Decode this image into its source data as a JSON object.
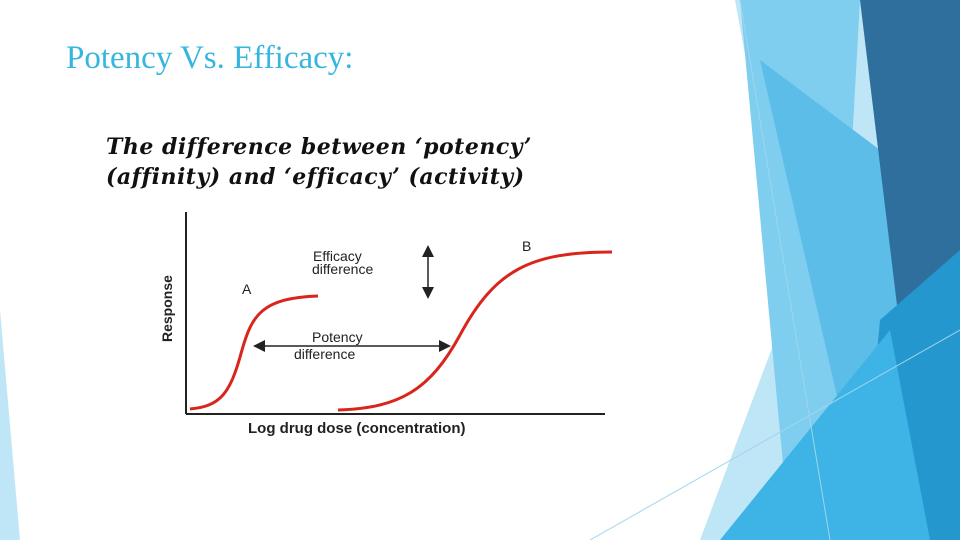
{
  "slide": {
    "title": "Potency Vs. Efficacy:"
  },
  "figure": {
    "heading_line_1": "The difference between ‘potency’",
    "heading_line_2": "(affinity) and ‘efficacy’ (activity)",
    "y_axis_label": "Response",
    "x_axis_label": "Log drug dose (concentration)",
    "curve_a_label": "A",
    "curve_b_label": "B",
    "efficacy_label_line_1": "Efficacy",
    "efficacy_label_line_2": "difference",
    "potency_label_line_1": "Potency",
    "potency_label_line_2": "difference"
  },
  "colors": {
    "title": "#35b5df",
    "curve": "#d9261c",
    "axis": "#222222",
    "accent_dark": "#2d6fa0",
    "accent_mid": "#3aa6d8",
    "accent_light": "#8fd3f0"
  }
}
